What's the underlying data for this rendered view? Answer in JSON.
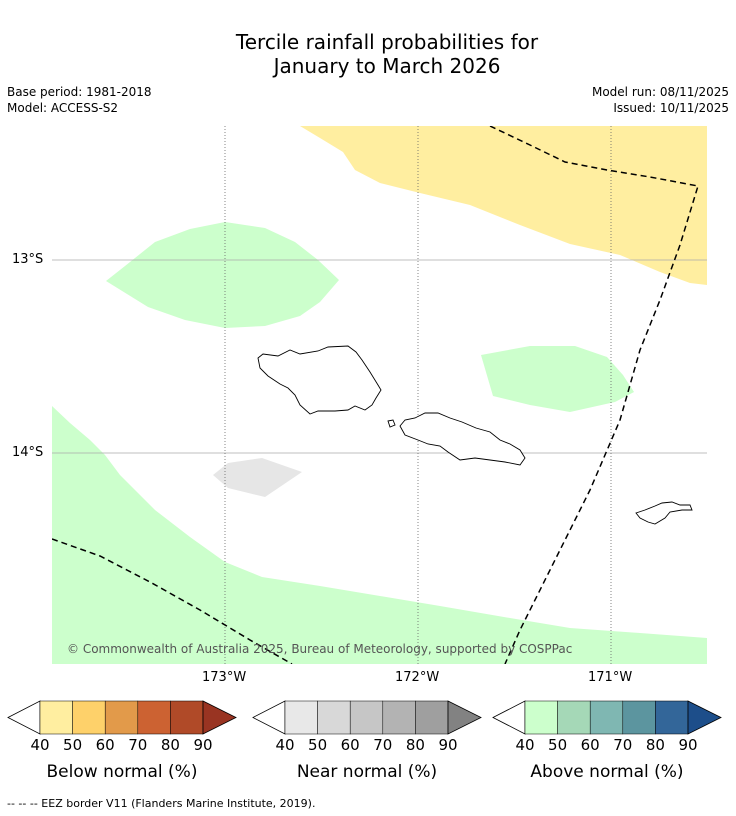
{
  "title_line1": "Tercile rainfall probabilities for",
  "title_line2": "January to March 2026",
  "base_period": "Base period: 1981-2018",
  "model": "Model: ACCESS-S2",
  "model_run": "Model run: 08/11/2025",
  "issued": "Issued: 10/11/2025",
  "lat_labels": [
    "13°S",
    "14°S"
  ],
  "lon_labels": [
    "173°W",
    "172°W",
    "171°W"
  ],
  "copyright": "© Commonwealth of Australia 2025, Bureau of Meteorology, supported by COSPPac",
  "colorbars": [
    {
      "name": "below",
      "title": "Below normal (%)",
      "ticks": [
        "40",
        "50",
        "60",
        "70",
        "80",
        "90"
      ],
      "colors": [
        "#ffffff",
        "#ffeea0",
        "#fed16a",
        "#e29a4a",
        "#cc6232",
        "#b04a28",
        "#993422"
      ]
    },
    {
      "name": "near",
      "title": "Near normal (%)",
      "ticks": [
        "40",
        "50",
        "60",
        "70",
        "80",
        "90"
      ],
      "colors": [
        "#ffffff",
        "#e8e8e8",
        "#d8d8d8",
        "#c6c6c6",
        "#b3b3b3",
        "#9f9f9f",
        "#828282"
      ]
    },
    {
      "name": "above",
      "title": "Above normal (%)",
      "ticks": [
        "40",
        "50",
        "60",
        "70",
        "80",
        "90"
      ],
      "colors": [
        "#ffffff",
        "#ccffcc",
        "#a5d8b7",
        "#7fb7b2",
        "#5c959f",
        "#336699",
        "#1d4e8a"
      ]
    }
  ],
  "footer": "--  --  -- EEZ border V11 (Flanders Marine Institute, 2019)."
}
